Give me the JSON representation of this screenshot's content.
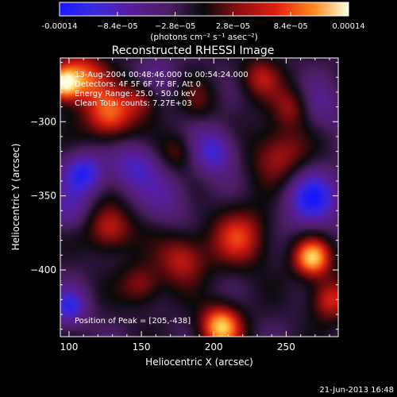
{
  "chart_data": {
    "type": "heatmap",
    "title": "Reconstructed RHESSI Image",
    "xlabel": "Heliocentric X (arcsec)",
    "ylabel": "Heliocentric Y (arcsec)",
    "xlim": [
      94,
      286
    ],
    "ylim": [
      -445,
      -257
    ],
    "xticks": [
      100,
      150,
      200,
      250
    ],
    "yticks": [
      -300,
      -350,
      -400
    ],
    "colorbar": {
      "colormap": "rainbow-hot",
      "range": [
        -0.00014,
        0.00014
      ],
      "tick_values": [
        -0.00014,
        -8.4e-05,
        -2.8e-05,
        2.8e-05,
        8.4e-05,
        0.00014
      ],
      "tick_labels": [
        "-0.00014",
        "−8.4e−05",
        "−2.8e−05",
        "2.8e−05",
        "8.4e−05",
        "0.00014"
      ],
      "units_text": "(photons cm⁻² s⁻¹ asec⁻²)"
    },
    "annotations": [
      "13-Aug-2004 00:48:46.000 to 00:54:24.000",
      "Detectors: 4F 5F 6F 7F 8F, Att 0",
      "Energy Range: 25.0 - 50.0 keV",
      "Clean     Total counts: 7.27E+03"
    ],
    "peak_label": "Position of Peak = [205,-438]",
    "peak_position": [
      205,
      -438
    ],
    "footer_date": "21-Jun-2013 16:48",
    "features": [
      {
        "x": 96,
        "y": -274,
        "v": 1.0,
        "s": 8
      },
      {
        "x": 110,
        "y": -270,
        "v": 0.7,
        "s": 12
      },
      {
        "x": 128,
        "y": -296,
        "v": 0.75,
        "s": 12
      },
      {
        "x": 150,
        "y": -284,
        "v": 0.45,
        "s": 9
      },
      {
        "x": 205,
        "y": -438,
        "v": 1.0,
        "s": 10
      },
      {
        "x": 268,
        "y": -392,
        "v": 1.0,
        "s": 9
      },
      {
        "x": 280,
        "y": -420,
        "v": 0.6,
        "s": 10
      },
      {
        "x": 218,
        "y": -378,
        "v": 0.6,
        "s": 14
      },
      {
        "x": 178,
        "y": -392,
        "v": 0.55,
        "s": 12
      },
      {
        "x": 128,
        "y": -372,
        "v": 0.6,
        "s": 11
      },
      {
        "x": 150,
        "y": -410,
        "v": 0.45,
        "s": 10
      },
      {
        "x": 245,
        "y": -322,
        "v": 0.5,
        "s": 14
      },
      {
        "x": 175,
        "y": -320,
        "v": 0.35,
        "s": 9
      },
      {
        "x": 190,
        "y": -285,
        "v": 0.25,
        "s": 9
      },
      {
        "x": 232,
        "y": -270,
        "v": 0.45,
        "s": 10
      },
      {
        "x": 255,
        "y": -290,
        "v": 0.5,
        "s": 10
      },
      {
        "x": 100,
        "y": -360,
        "v": -0.35,
        "s": 10
      },
      {
        "x": 110,
        "y": -335,
        "v": -0.7,
        "s": 10
      },
      {
        "x": 145,
        "y": -330,
        "v": -0.5,
        "s": 12
      },
      {
        "x": 200,
        "y": -320,
        "v": -0.6,
        "s": 11
      },
      {
        "x": 268,
        "y": -352,
        "v": -0.75,
        "s": 13
      },
      {
        "x": 270,
        "y": -290,
        "v": -0.35,
        "s": 12
      },
      {
        "x": 168,
        "y": -352,
        "v": -0.3,
        "s": 12
      },
      {
        "x": 100,
        "y": -425,
        "v": -0.6,
        "s": 9
      },
      {
        "x": 160,
        "y": -270,
        "v": -0.25,
        "s": 10
      }
    ],
    "background_level": -0.15
  }
}
